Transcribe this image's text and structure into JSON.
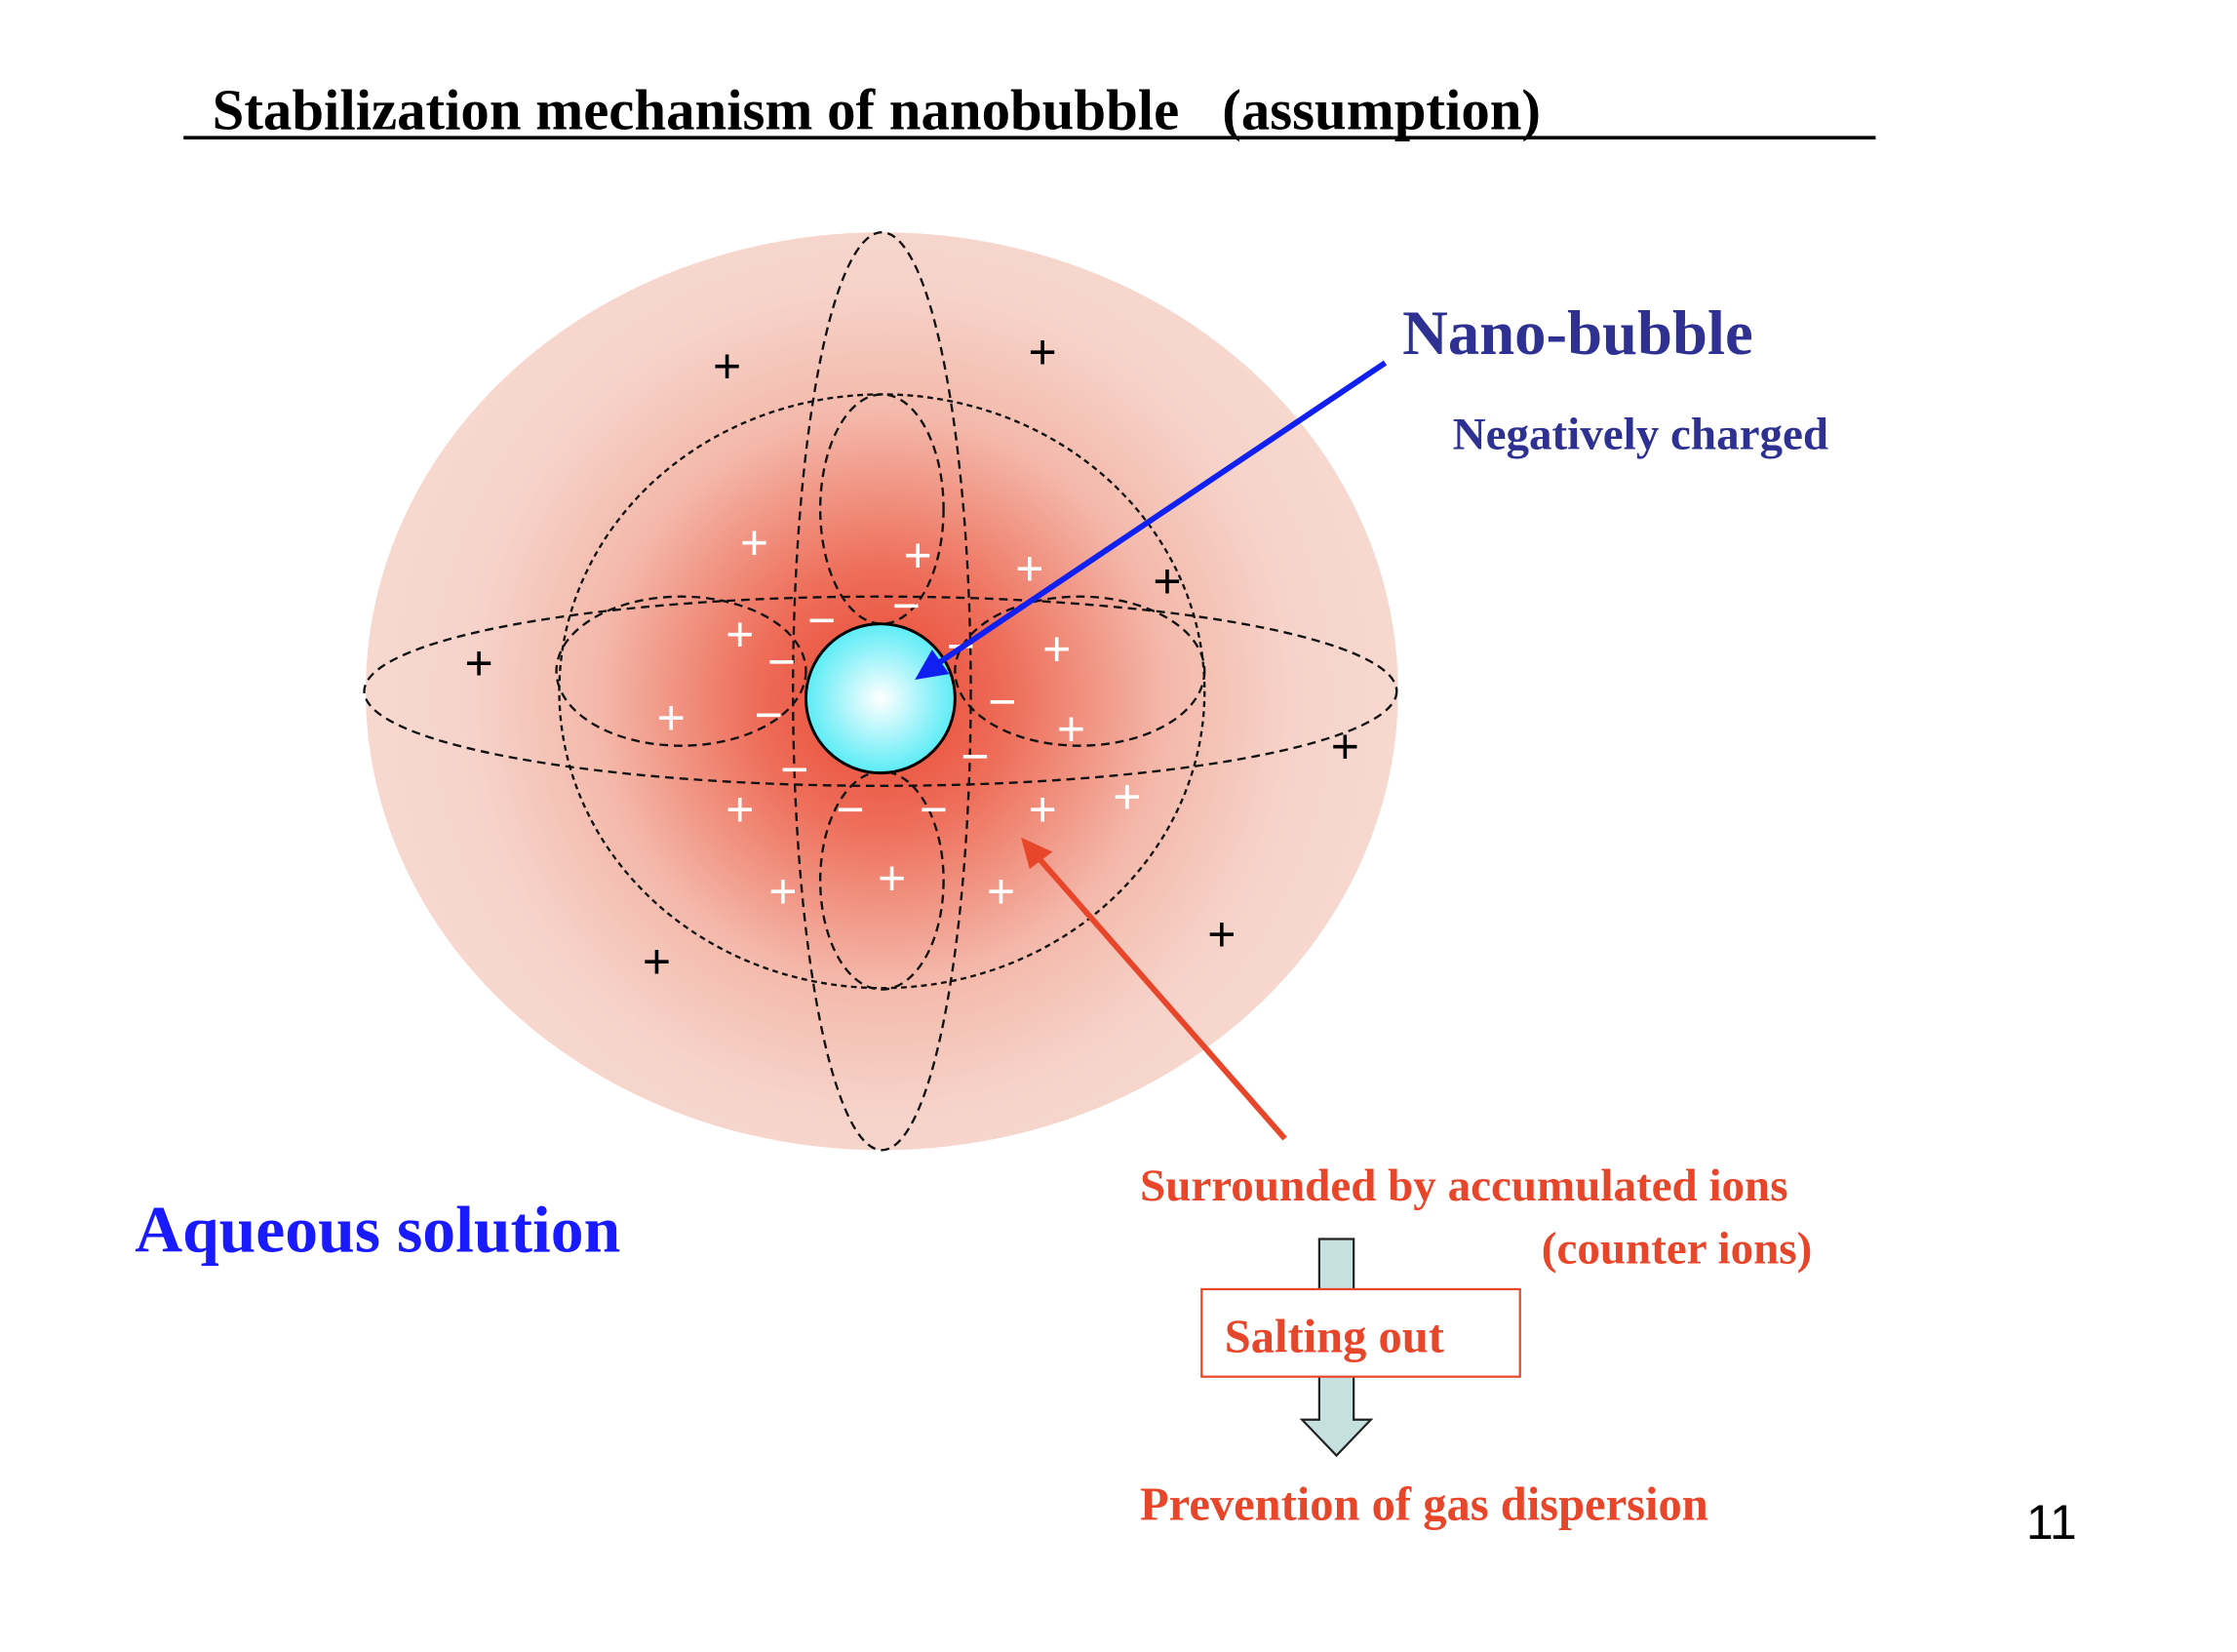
{
  "title": "  Stabilization mechanism of nanobubble   (assumption)",
  "labels": {
    "nano_bubble": "Nano-bubble",
    "negatively_charged": "Negatively charged",
    "aqueous_solution": "Aqueous solution",
    "surrounded": "Surrounded by accumulated ions",
    "counter_ions": "(counter ions)",
    "salting_out": "Salting out",
    "prevention": "Prevention of gas dispersion"
  },
  "page_number": "11",
  "ion_symbols": {
    "positive": "+",
    "negative": "−"
  },
  "colors": {
    "title": "#000000",
    "nano_bubble": "#2e3192",
    "aqueous": "#1a1aff",
    "orange_text": "#e8462b",
    "bubble_fill": "#6ff0f8",
    "arrow_blue": "#1020f0",
    "arrow_red": "#e8462b",
    "down_arrow": "#c6e0e0"
  }
}
